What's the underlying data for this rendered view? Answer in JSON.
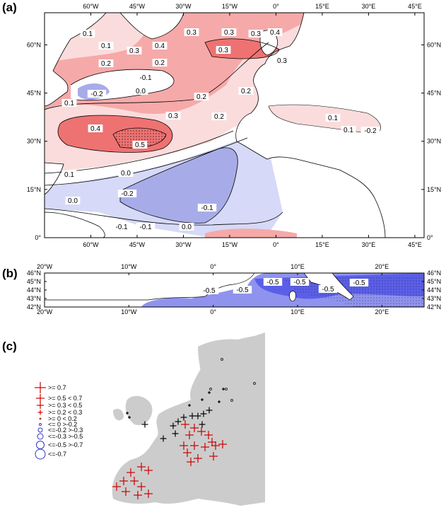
{
  "panel_a": {
    "label": "(a)",
    "lon_ticks": [
      "60°W",
      "45°W",
      "30°W",
      "15°W",
      "0°",
      "15°E",
      "30°E",
      "45°E"
    ],
    "lat_ticks_left": [
      "60°N",
      "45°N",
      "30°N",
      "15°N",
      "0°"
    ],
    "lat_ticks_right": [
      "60°N",
      "45°N",
      "30°N",
      "15°N",
      "0°"
    ],
    "contour_labels": [
      "0.1",
      "0.1",
      "0.2",
      "0.3",
      "0.3",
      "0.3",
      "0.3",
      "0.4",
      "0.4",
      "0.3",
      "0.3",
      "0.2",
      "0.2",
      "0.2",
      "-0.1",
      "-0.2",
      "0.1",
      "0.0",
      "0.4",
      "0.5",
      "0.3",
      "0.2",
      "0.0",
      "0.1",
      "0.1",
      "0.1",
      "-0.2",
      "-0.2",
      "-0.1",
      "0.0",
      "-0.1",
      "-0.1",
      "0.0"
    ],
    "colors": {
      "positive_light": "#fbdcdc",
      "positive_mid": "#f6a9a9",
      "positive_strong": "#ee7272",
      "negative_light": "#d6d9f7",
      "negative_mid": "#a7ace9"
    }
  },
  "panel_b": {
    "label": "(b)",
    "lon_ticks": [
      "20°W",
      "10°W",
      "0°",
      "10°E",
      "20°E"
    ],
    "lat_ticks_left": [
      "46°N",
      "45°N",
      "44°N",
      "43°N",
      "42°N"
    ],
    "lat_ticks_right": [
      "46°N",
      "45°N",
      "44°N",
      "43°N",
      "42°N"
    ],
    "contour_labels": [
      "-0.5",
      "-0.5",
      "-0.5",
      "-0.5",
      "-0.5",
      "-0.5"
    ],
    "colors": {
      "negative": "#5b5fe8",
      "negative_light": "#8f93ee"
    }
  },
  "panel_c": {
    "label": "(c)",
    "legend": [
      ">= 0.7",
      ">= 0.5  < 0.7",
      ">= 0.3  < 0.5",
      ">= 0.2  < 0.3",
      ">=  0   < 0.2",
      "<=  0   >-0.2",
      "<=-0.2  >-0.3",
      "<=-0.3  >-0.5",
      "<=-0.5  >-0.7",
      "<=-0.7"
    ],
    "colors": {
      "land": "#cccccc",
      "positive_sig": "#cc0000",
      "positive": "#000000",
      "negative": "#3333cc"
    }
  }
}
